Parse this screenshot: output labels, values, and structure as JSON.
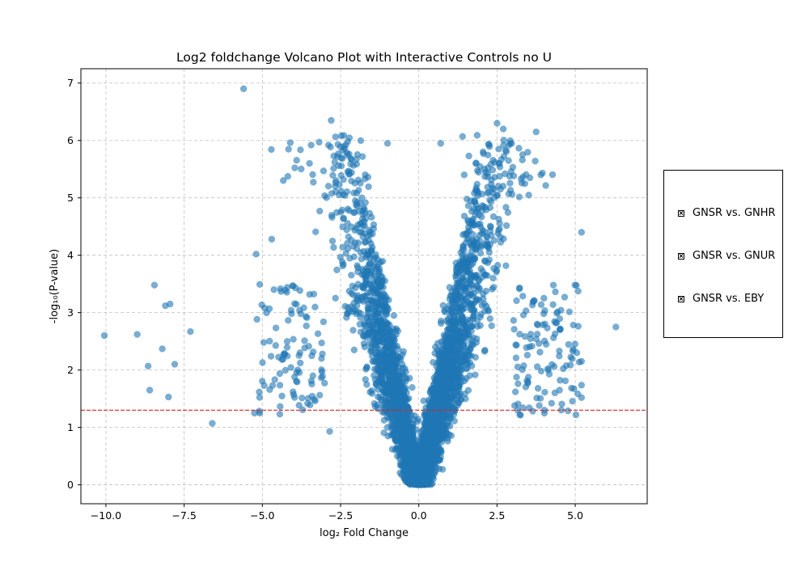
{
  "chart_data": {
    "type": "scatter",
    "title": "Log2 foldchange Volcano Plot with Interactive Controls no U",
    "xlabel": "log₂ Fold Change",
    "ylabel": "-log₁₀(P-value)",
    "xlim": [
      -10.8,
      7.3
    ],
    "ylim": [
      -0.33,
      7.25
    ],
    "xticks": [
      -10.0,
      -7.5,
      -5.0,
      -2.5,
      0.0,
      2.5,
      5.0
    ],
    "xtick_labels": [
      "−10.0",
      "−7.5",
      "−5.0",
      "−2.5",
      "0.0",
      "2.5",
      "5.0"
    ],
    "yticks": [
      0,
      1,
      2,
      3,
      4,
      5,
      6,
      7
    ],
    "ytick_labels": [
      "0",
      "1",
      "2",
      "3",
      "4",
      "5",
      "6",
      "7"
    ],
    "grid": true,
    "threshold_y": 1.3,
    "threshold_color": "#d62728",
    "point_color": "#1f77b4",
    "point_alpha": 0.6,
    "highlighted_points": [
      {
        "x": -5.6,
        "y": 6.9
      },
      {
        "x": -2.8,
        "y": 6.35
      },
      {
        "x": -1.0,
        "y": 5.95
      },
      {
        "x": 0.7,
        "y": 5.95
      },
      {
        "x": 2.5,
        "y": 6.3
      },
      {
        "x": 2.7,
        "y": 6.2
      },
      {
        "x": 3.75,
        "y": 6.15
      },
      {
        "x": 1.4,
        "y": 6.07
      },
      {
        "x": -10.05,
        "y": 2.6
      },
      {
        "x": -9.0,
        "y": 2.62
      },
      {
        "x": -8.45,
        "y": 3.48
      },
      {
        "x": -8.1,
        "y": 3.12
      },
      {
        "x": -7.95,
        "y": 3.15
      },
      {
        "x": -8.6,
        "y": 1.65
      },
      {
        "x": -8.0,
        "y": 1.53
      },
      {
        "x": -8.65,
        "y": 2.07
      },
      {
        "x": -8.2,
        "y": 2.37
      },
      {
        "x": -7.8,
        "y": 2.1
      },
      {
        "x": -7.3,
        "y": 2.67
      },
      {
        "x": -6.6,
        "y": 1.07
      },
      {
        "x": -5.2,
        "y": 4.02
      },
      {
        "x": -4.7,
        "y": 4.28
      },
      {
        "x": 5.2,
        "y": 4.4
      },
      {
        "x": 6.3,
        "y": 2.75
      },
      {
        "x": 5.2,
        "y": 1.52
      },
      {
        "x": 5.2,
        "y": 2.15
      },
      {
        "x": 5.05,
        "y": 2.3
      },
      {
        "x": 4.3,
        "y": 3.48
      },
      {
        "x": -2.85,
        "y": 0.93
      },
      {
        "x": -5.25,
        "y": 1.25
      },
      {
        "x": -2.6,
        "y": 5.72
      },
      {
        "x": -1.8,
        "y": 5.72
      },
      {
        "x": 1.6,
        "y": 5.73
      },
      {
        "x": 3.55,
        "y": 5.35
      },
      {
        "x": 3.9,
        "y": 5.4
      }
    ]
  },
  "controls": {
    "items": [
      {
        "label": "GNSR vs. GNHR"
      },
      {
        "label": "GNSR vs. GNUR"
      },
      {
        "label": "GNSR vs. EBY"
      }
    ]
  }
}
